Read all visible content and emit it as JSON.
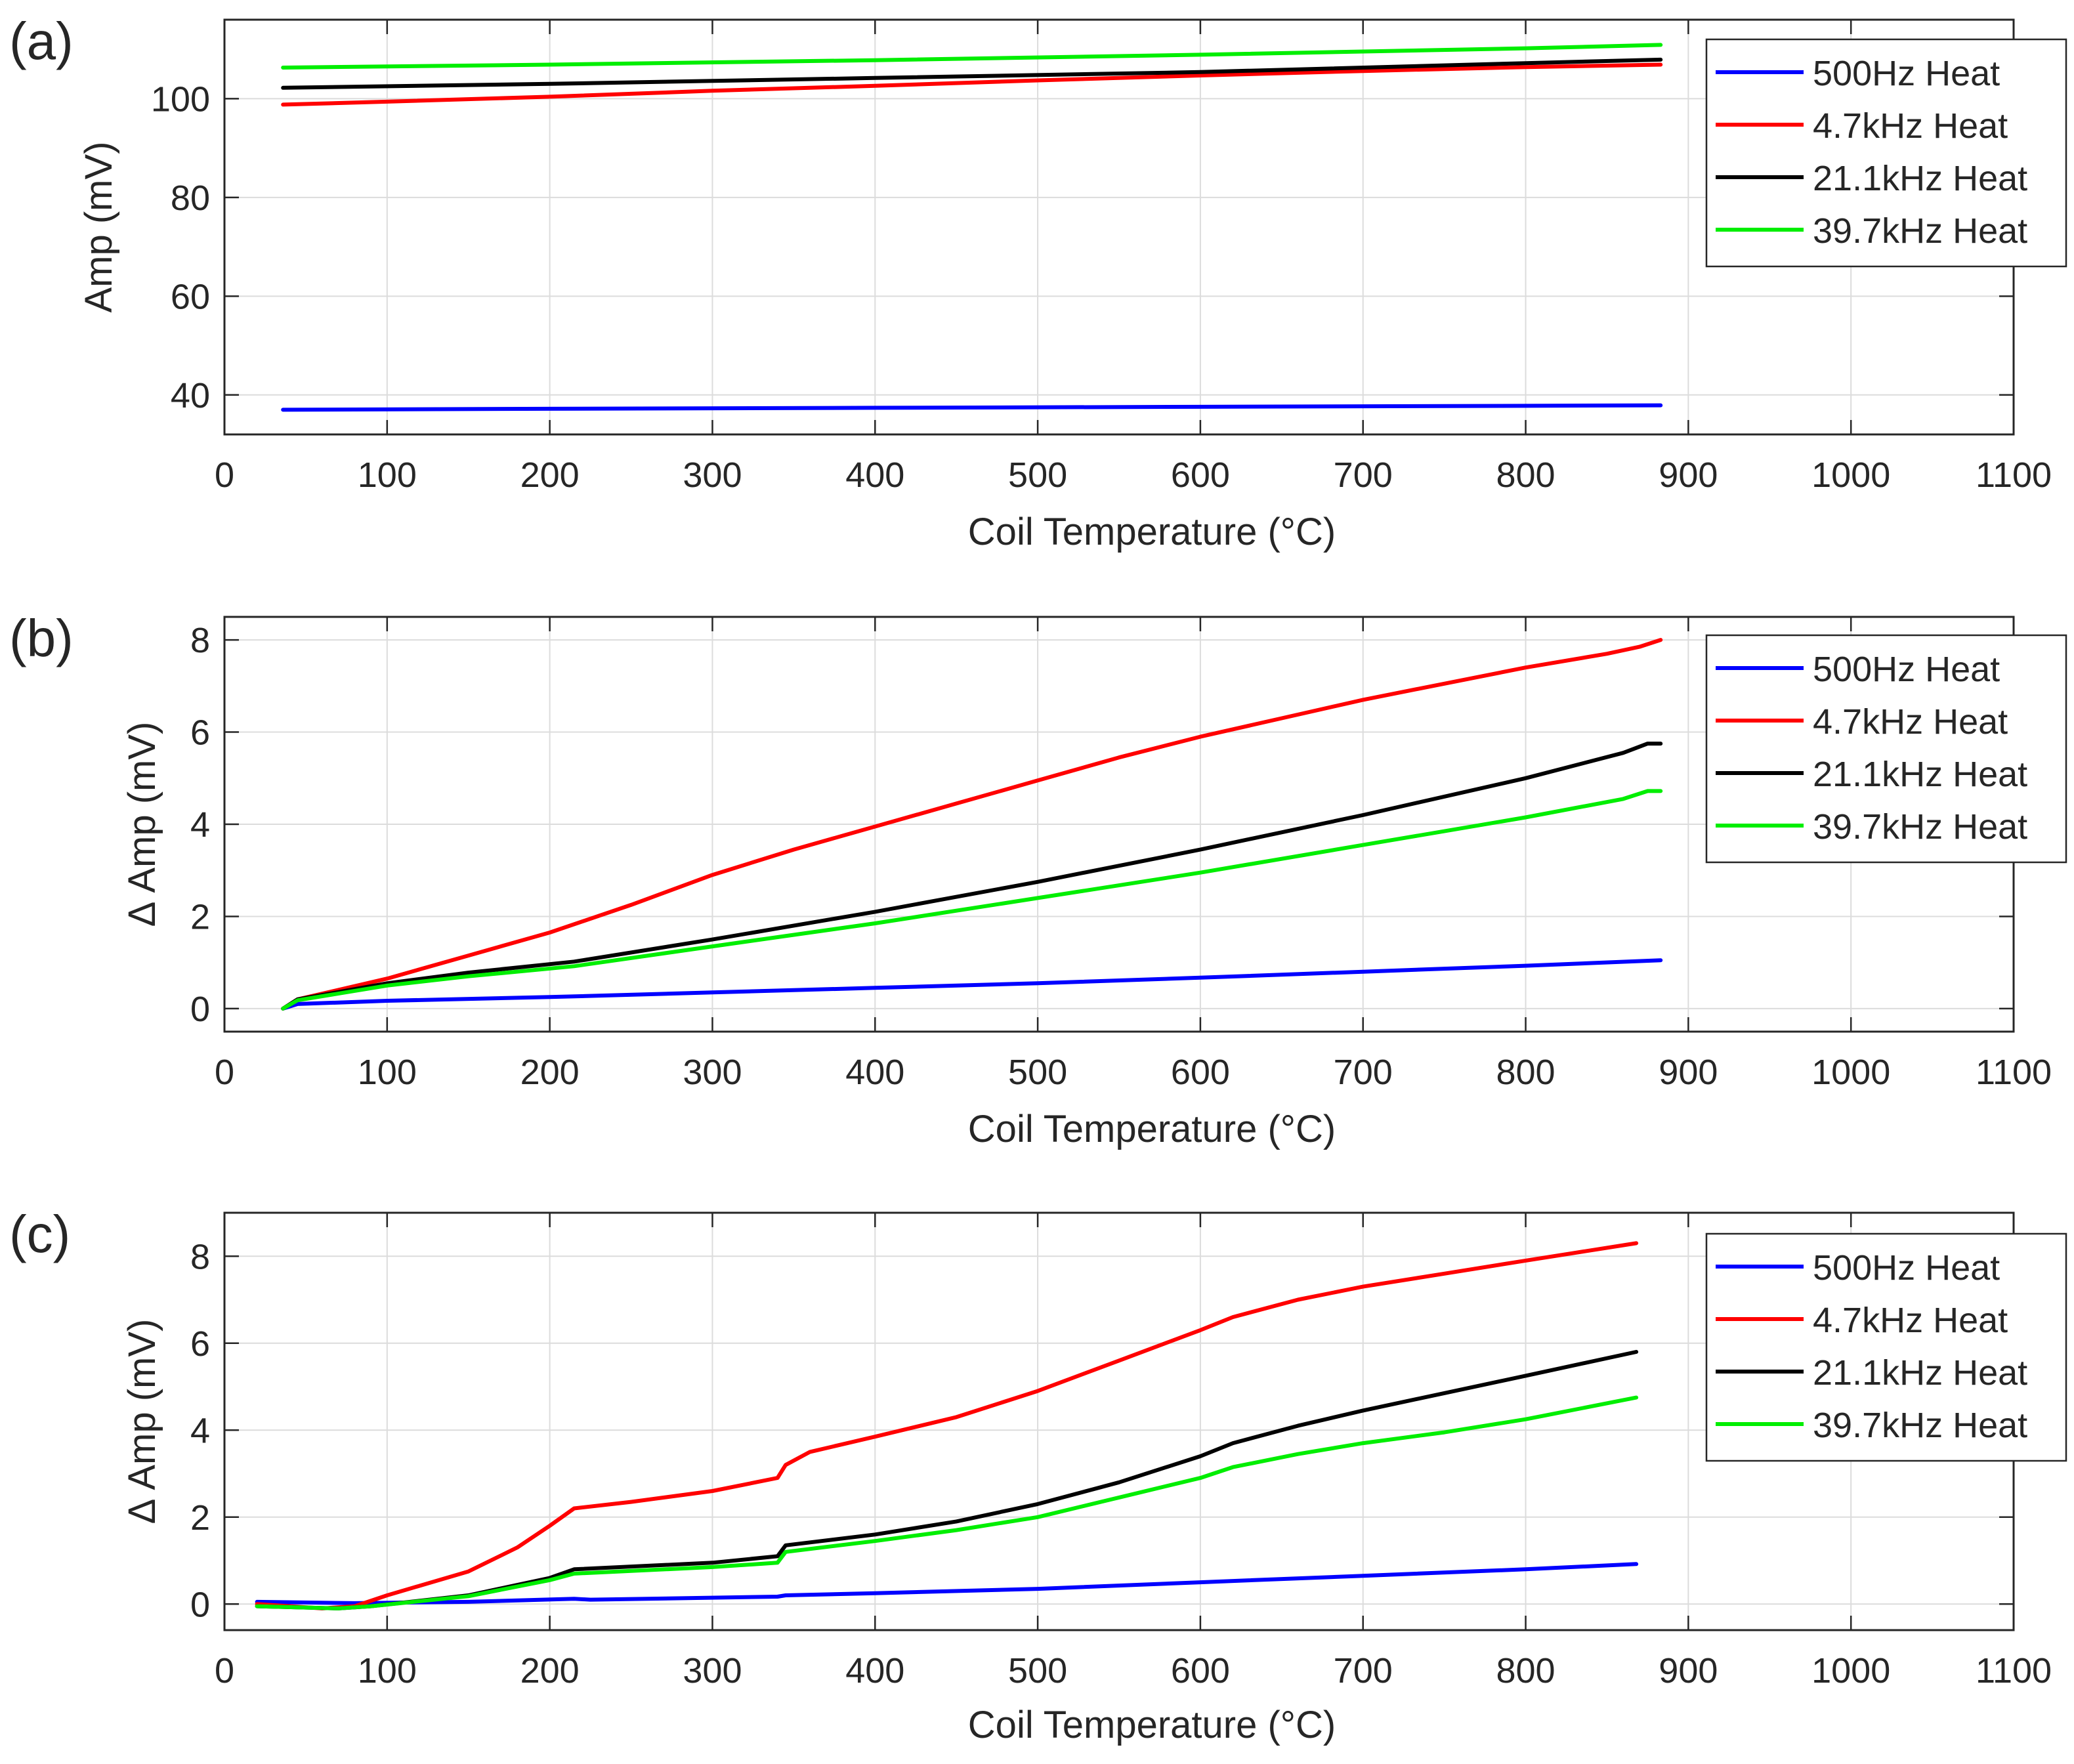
{
  "chart_data": [
    {
      "panel_label": "(a)",
      "type": "line",
      "xlabel": "Coil Temperature (°C)",
      "ylabel": "Amp (mV)",
      "xlim": [
        0,
        1100
      ],
      "ylim": [
        32,
        116
      ],
      "xticks": [
        0,
        100,
        200,
        300,
        400,
        500,
        600,
        700,
        800,
        900,
        1000,
        1100
      ],
      "yticks": [
        40,
        60,
        80,
        100
      ],
      "grid": true,
      "legend_position": "top-right",
      "series": [
        {
          "name": "500Hz Heat",
          "color": "#0000ff",
          "x": [
            36,
            200,
            400,
            600,
            800,
            883
          ],
          "y": [
            37.0,
            37.2,
            37.4,
            37.6,
            37.8,
            37.9
          ]
        },
        {
          "name": "4.7kHz Heat",
          "color": "#ff0000",
          "x": [
            36,
            100,
            200,
            300,
            400,
            500,
            600,
            700,
            800,
            883
          ],
          "y": [
            98.8,
            99.4,
            100.4,
            101.6,
            102.6,
            103.7,
            104.7,
            105.6,
            106.4,
            106.9
          ]
        },
        {
          "name": "21.1kHz Heat",
          "color": "#000000",
          "x": [
            36,
            200,
            400,
            600,
            800,
            883
          ],
          "y": [
            102.2,
            103.0,
            104.2,
            105.4,
            107.2,
            107.9
          ]
        },
        {
          "name": "39.7kHz Heat",
          "color": "#00ee00",
          "x": [
            36,
            200,
            400,
            600,
            800,
            883
          ],
          "y": [
            106.3,
            106.9,
            107.8,
            108.9,
            110.2,
            110.9
          ]
        }
      ]
    },
    {
      "panel_label": "(b)",
      "type": "line",
      "xlabel": "Coil Temperature (°C)",
      "ylabel": "Δ Amp (mV)",
      "xlim": [
        0,
        1100
      ],
      "ylim": [
        -0.5,
        8.5
      ],
      "xticks": [
        0,
        100,
        200,
        300,
        400,
        500,
        600,
        700,
        800,
        900,
        1000,
        1100
      ],
      "yticks": [
        0,
        2,
        4,
        6,
        8
      ],
      "grid": true,
      "legend_position": "top-right",
      "series": [
        {
          "name": "500Hz Heat",
          "color": "#0000ff",
          "x": [
            36,
            45,
            100,
            200,
            300,
            400,
            500,
            600,
            700,
            800,
            883
          ],
          "y": [
            0,
            0.1,
            0.17,
            0.25,
            0.35,
            0.45,
            0.55,
            0.67,
            0.8,
            0.93,
            1.05
          ]
        },
        {
          "name": "4.7kHz Heat",
          "color": "#ff0000",
          "x": [
            36,
            45,
            100,
            150,
            200,
            250,
            300,
            350,
            400,
            450,
            500,
            550,
            600,
            650,
            700,
            750,
            800,
            850,
            870,
            883
          ],
          "y": [
            0,
            0.2,
            0.65,
            1.15,
            1.65,
            2.25,
            2.9,
            3.45,
            3.95,
            4.45,
            4.95,
            5.45,
            5.9,
            6.3,
            6.7,
            7.05,
            7.4,
            7.7,
            7.85,
            8.0
          ]
        },
        {
          "name": "21.1kHz Heat",
          "color": "#000000",
          "x": [
            36,
            45,
            100,
            150,
            215,
            300,
            400,
            500,
            600,
            700,
            800,
            860,
            875,
            883
          ],
          "y": [
            0,
            0.2,
            0.55,
            0.78,
            1.02,
            1.5,
            2.1,
            2.75,
            3.45,
            4.2,
            5.0,
            5.55,
            5.75,
            5.75
          ]
        },
        {
          "name": "39.7kHz Heat",
          "color": "#00ee00",
          "x": [
            36,
            45,
            100,
            150,
            215,
            300,
            400,
            500,
            600,
            700,
            800,
            860,
            875,
            883
          ],
          "y": [
            0,
            0.18,
            0.5,
            0.7,
            0.92,
            1.35,
            1.85,
            2.4,
            2.95,
            3.55,
            4.15,
            4.55,
            4.72,
            4.72
          ]
        }
      ]
    },
    {
      "panel_label": "(c)",
      "type": "line",
      "xlabel": "Coil Temperature (°C)",
      "ylabel": "Δ Amp (mV)",
      "xlim": [
        0,
        1100
      ],
      "ylim": [
        -0.6,
        9
      ],
      "xticks": [
        0,
        100,
        200,
        300,
        400,
        500,
        600,
        700,
        800,
        900,
        1000,
        1100
      ],
      "yticks": [
        0,
        2,
        4,
        6,
        8
      ],
      "grid": true,
      "legend_position": "top-right",
      "series": [
        {
          "name": "500Hz Heat",
          "color": "#0000ff",
          "x": [
            20,
            80,
            150,
            215,
            225,
            340,
            345,
            400,
            500,
            600,
            700,
            800,
            868
          ],
          "y": [
            0.05,
            0.02,
            0.05,
            0.12,
            0.1,
            0.17,
            0.2,
            0.25,
            0.35,
            0.5,
            0.65,
            0.8,
            0.92
          ]
        },
        {
          "name": "4.7kHz Heat",
          "color": "#ff0000",
          "x": [
            20,
            60,
            80,
            100,
            150,
            180,
            200,
            215,
            250,
            300,
            340,
            345,
            360,
            400,
            450,
            500,
            550,
            600,
            620,
            660,
            700,
            750,
            800,
            868
          ],
          "y": [
            0,
            -0.1,
            -0.05,
            0.2,
            0.75,
            1.3,
            1.8,
            2.2,
            2.35,
            2.6,
            2.9,
            3.2,
            3.5,
            3.85,
            4.3,
            4.9,
            5.6,
            6.3,
            6.6,
            7.0,
            7.3,
            7.6,
            7.9,
            8.3
          ]
        },
        {
          "name": "21.1kHz Heat",
          "color": "#000000",
          "x": [
            20,
            70,
            90,
            150,
            200,
            215,
            300,
            340,
            345,
            400,
            450,
            500,
            550,
            600,
            620,
            660,
            700,
            750,
            800,
            868
          ],
          "y": [
            -0.05,
            -0.1,
            -0.05,
            0.2,
            0.6,
            0.8,
            0.95,
            1.1,
            1.35,
            1.6,
            1.9,
            2.3,
            2.8,
            3.4,
            3.7,
            4.1,
            4.45,
            4.85,
            5.25,
            5.8
          ]
        },
        {
          "name": "39.7kHz Heat",
          "color": "#00ee00",
          "x": [
            20,
            70,
            90,
            150,
            200,
            215,
            300,
            340,
            345,
            400,
            450,
            500,
            550,
            600,
            620,
            660,
            700,
            750,
            800,
            868
          ],
          "y": [
            -0.05,
            -0.1,
            -0.05,
            0.18,
            0.55,
            0.7,
            0.85,
            0.95,
            1.2,
            1.45,
            1.7,
            2.0,
            2.45,
            2.9,
            3.15,
            3.45,
            3.7,
            3.95,
            4.25,
            4.75
          ]
        }
      ]
    }
  ]
}
